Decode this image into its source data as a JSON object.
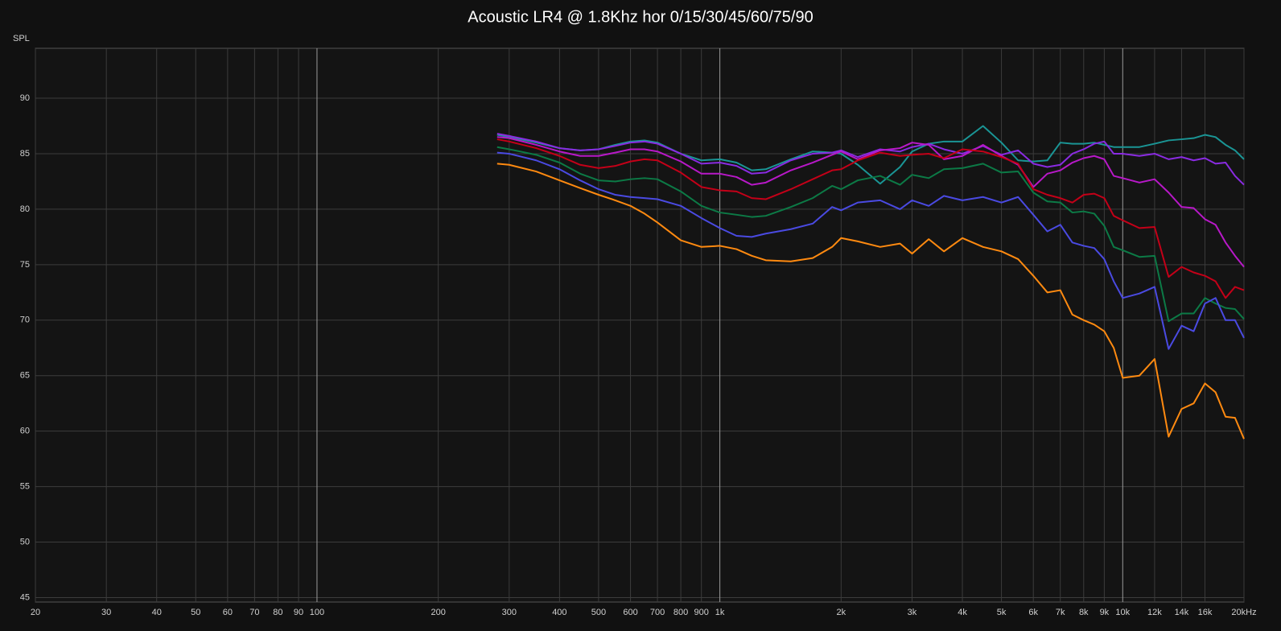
{
  "chart_data": {
    "type": "line",
    "title": "Acoustic LR4 @ 1.8Khz hor 0/15/30/45/60/75/90",
    "y_label": "SPL",
    "log_x": true,
    "grid": true,
    "xlim": [
      20,
      20000
    ],
    "ylim": [
      44.6,
      94.5
    ],
    "yticks": [
      45,
      50,
      55,
      60,
      65,
      70,
      75,
      80,
      85,
      90
    ],
    "xticks": [
      20,
      30,
      40,
      50,
      60,
      70,
      80,
      90,
      100,
      200,
      300,
      400,
      500,
      600,
      700,
      800,
      900,
      {
        "value": 1000,
        "label": "1k"
      },
      {
        "value": 2000,
        "label": "2k"
      },
      {
        "value": 3000,
        "label": "3k"
      },
      {
        "value": 4000,
        "label": "4k"
      },
      {
        "value": 5000,
        "label": "5k"
      },
      {
        "value": 6000,
        "label": "6k"
      },
      {
        "value": 7000,
        "label": "7k"
      },
      {
        "value": 8000,
        "label": "8k"
      },
      {
        "value": 9000,
        "label": "9k"
      },
      {
        "value": 10000,
        "label": "10k"
      },
      {
        "value": 12000,
        "label": "12k"
      },
      {
        "value": 14000,
        "label": "14k"
      },
      {
        "value": 16000,
        "label": "16k"
      },
      {
        "value": 20000,
        "label": "20kHz"
      }
    ],
    "x": [
      280,
      300,
      350,
      400,
      450,
      500,
      550,
      600,
      650,
      700,
      800,
      900,
      1000,
      1100,
      1200,
      1300,
      1500,
      1700,
      1900,
      2000,
      2200,
      2500,
      2800,
      3000,
      3300,
      3600,
      4000,
      4500,
      5000,
      5500,
      6000,
      6500,
      7000,
      7500,
      8000,
      8500,
      9000,
      9500,
      10000,
      11000,
      12000,
      13000,
      14000,
      15000,
      16000,
      17000,
      18000,
      19000,
      20000
    ],
    "series": [
      {
        "color": "#1a9595",
        "values": [
          86.7,
          86.5,
          86.0,
          85.5,
          85.3,
          85.4,
          85.8,
          86.1,
          86.2,
          86.0,
          85.0,
          84.4,
          84.5,
          84.2,
          83.5,
          83.6,
          84.5,
          85.2,
          85.1,
          85.0,
          84.0,
          82.3,
          83.8,
          85.2,
          85.9,
          86.1,
          86.1,
          87.5,
          86.0,
          84.4,
          84.3,
          84.4,
          86.0,
          85.9,
          85.9,
          86.0,
          85.8,
          85.6,
          85.6,
          85.6,
          85.9,
          86.2,
          86.3,
          86.4,
          86.7,
          86.5,
          85.8,
          85.3,
          84.5
        ]
      },
      {
        "color": "#8a2be2",
        "values": [
          86.8,
          86.6,
          86.1,
          85.5,
          85.3,
          85.4,
          85.7,
          86.0,
          86.1,
          85.9,
          85.0,
          84.1,
          84.2,
          83.9,
          83.2,
          83.3,
          84.4,
          85.0,
          85.1,
          85.3,
          84.7,
          85.4,
          85.2,
          85.6,
          85.9,
          85.4,
          85.0,
          85.7,
          84.9,
          85.3,
          84.1,
          83.8,
          84.0,
          85.0,
          85.4,
          85.9,
          86.1,
          85.0,
          85.0,
          84.8,
          85.0,
          84.5,
          84.7,
          84.4,
          84.6,
          84.1,
          84.2,
          83.0,
          82.2
        ]
      },
      {
        "color": "#b818c8",
        "values": [
          86.5,
          86.4,
          85.8,
          85.2,
          84.8,
          84.8,
          85.1,
          85.4,
          85.4,
          85.2,
          84.3,
          83.2,
          83.2,
          82.9,
          82.2,
          82.4,
          83.5,
          84.2,
          84.9,
          85.2,
          84.5,
          85.3,
          85.5,
          86.0,
          85.8,
          84.5,
          84.8,
          85.8,
          84.8,
          84.0,
          82.0,
          83.2,
          83.5,
          84.2,
          84.6,
          84.8,
          84.5,
          83.0,
          82.8,
          82.4,
          82.7,
          81.5,
          80.2,
          80.1,
          79.1,
          78.6,
          77.0,
          75.8,
          74.8
        ]
      },
      {
        "color": "#c40018",
        "values": [
          86.3,
          86.1,
          85.5,
          84.8,
          84.0,
          83.7,
          83.9,
          84.3,
          84.5,
          84.4,
          83.3,
          82.0,
          81.7,
          81.6,
          81.0,
          80.9,
          81.8,
          82.7,
          83.5,
          83.6,
          84.4,
          85.1,
          84.8,
          84.9,
          85.0,
          84.6,
          85.4,
          85.2,
          84.7,
          84.1,
          81.8,
          81.3,
          81.0,
          80.6,
          81.3,
          81.4,
          81.0,
          79.4,
          79.0,
          78.3,
          78.4,
          73.9,
          74.8,
          74.3,
          74.0,
          73.5,
          72.0,
          73.0,
          72.7
        ]
      },
      {
        "color": "#0c7a46",
        "values": [
          85.6,
          85.4,
          84.9,
          84.2,
          83.2,
          82.6,
          82.5,
          82.7,
          82.8,
          82.7,
          81.6,
          80.3,
          79.7,
          79.5,
          79.3,
          79.4,
          80.2,
          81.0,
          82.1,
          81.8,
          82.6,
          83.0,
          82.2,
          83.1,
          82.8,
          83.6,
          83.7,
          84.1,
          83.3,
          83.4,
          81.5,
          80.7,
          80.6,
          79.7,
          79.8,
          79.6,
          78.5,
          76.6,
          76.3,
          75.7,
          75.8,
          69.9,
          70.6,
          70.6,
          72.0,
          71.5,
          71.1,
          71.0,
          70.1
        ]
      },
      {
        "color": "#4a4ae2",
        "values": [
          85.1,
          85.0,
          84.4,
          83.6,
          82.6,
          81.8,
          81.3,
          81.1,
          81.0,
          80.9,
          80.3,
          79.2,
          78.3,
          77.6,
          77.5,
          77.8,
          78.2,
          78.7,
          80.2,
          79.9,
          80.6,
          80.8,
          80.0,
          80.8,
          80.3,
          81.2,
          80.8,
          81.1,
          80.6,
          81.1,
          79.5,
          78.0,
          78.6,
          77.0,
          76.7,
          76.5,
          75.5,
          73.5,
          72.0,
          72.4,
          73.0,
          67.4,
          69.5,
          69.0,
          71.5,
          72.0,
          70.0,
          70.0,
          68.4
        ]
      },
      {
        "color": "#ff8a10",
        "values": [
          84.1,
          84.0,
          83.4,
          82.6,
          81.9,
          81.3,
          80.8,
          80.3,
          79.6,
          78.8,
          77.2,
          76.6,
          76.7,
          76.4,
          75.8,
          75.4,
          75.3,
          75.6,
          76.6,
          77.4,
          77.1,
          76.6,
          76.9,
          76.0,
          77.3,
          76.2,
          77.4,
          76.6,
          76.2,
          75.5,
          74.0,
          72.5,
          72.7,
          70.5,
          70.0,
          69.6,
          69.0,
          67.5,
          64.8,
          65.0,
          66.5,
          59.5,
          62.0,
          62.5,
          64.3,
          63.5,
          61.3,
          61.2,
          59.3
        ]
      }
    ]
  }
}
